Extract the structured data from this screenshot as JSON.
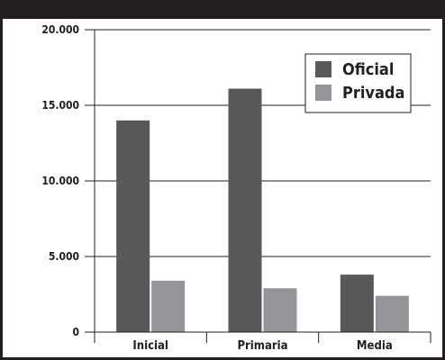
{
  "chart_data": {
    "type": "bar",
    "categories": [
      "Inicial",
      "Primaria",
      "Media"
    ],
    "series": [
      {
        "name": "Oficial",
        "values": [
          14000,
          16100,
          3800
        ],
        "color": "#58595b"
      },
      {
        "name": "Privada",
        "values": [
          3400,
          2900,
          2400
        ],
        "color": "#939598"
      }
    ],
    "yticks": [
      0,
      5000,
      10000,
      15000,
      20000
    ],
    "ytick_labels": [
      "0",
      "5.000",
      "10.000",
      "15.000",
      "20.000"
    ],
    "ylim": [
      0,
      20000
    ],
    "grid": true,
    "legend": "top-right",
    "title": "",
    "xlabel": "",
    "ylabel": ""
  }
}
